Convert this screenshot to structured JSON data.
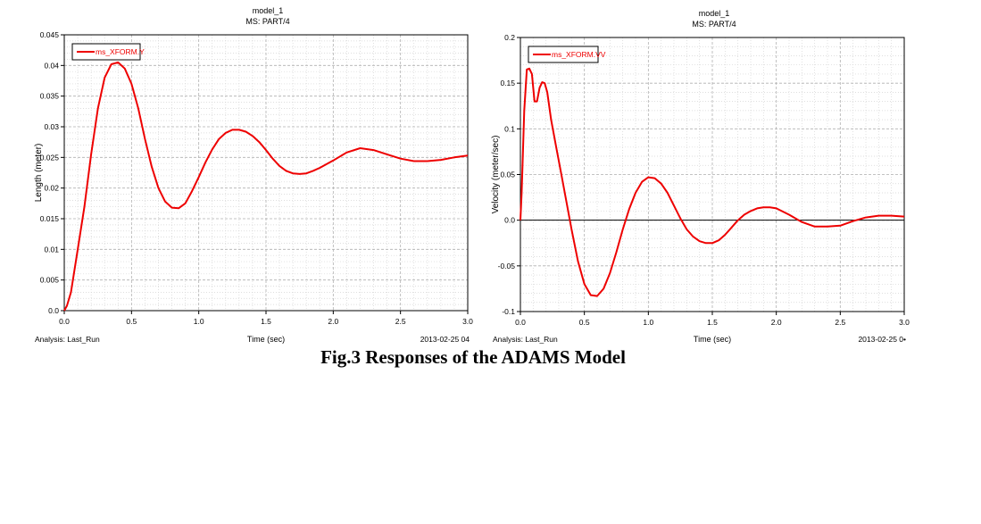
{
  "caption": "Fig.3 Responses of the ADAMS Model",
  "colors": {
    "series": "#ee0000",
    "grid": "#b0b0b0",
    "axis": "#000000"
  },
  "chart_data": [
    {
      "type": "line",
      "title": "model_1",
      "subtitle": "MS: PART/4",
      "xlabel": "Time (sec)",
      "ylabel": "Length (meter)",
      "xlim": [
        0,
        3.0
      ],
      "ylim": [
        0,
        0.045
      ],
      "xticks": [
        "0.0",
        "0.5",
        "1.0",
        "1.5",
        "2.0",
        "2.5",
        "3.0"
      ],
      "xtick_values": [
        0,
        0.5,
        1.0,
        1.5,
        2.0,
        2.5,
        3.0
      ],
      "yticks": [
        "0.0",
        "0.005",
        "0.01",
        "0.015",
        "0.02",
        "0.025",
        "0.03",
        "0.035",
        "0.04",
        "0.045"
      ],
      "ytick_values": [
        0,
        0.005,
        0.01,
        0.015,
        0.02,
        0.025,
        0.03,
        0.035,
        0.04,
        0.045
      ],
      "grid": true,
      "legend": "top-left",
      "footer_left": "Analysis:  Last_Run",
      "footer_right": "2013-02-25 04",
      "series": [
        {
          "name": "ms_XFORM.Y",
          "x": [
            0,
            0.02,
            0.05,
            0.1,
            0.15,
            0.2,
            0.25,
            0.3,
            0.35,
            0.4,
            0.45,
            0.5,
            0.55,
            0.6,
            0.65,
            0.7,
            0.75,
            0.8,
            0.85,
            0.9,
            0.95,
            1.0,
            1.05,
            1.1,
            1.15,
            1.2,
            1.25,
            1.3,
            1.35,
            1.4,
            1.45,
            1.5,
            1.55,
            1.6,
            1.65,
            1.7,
            1.75,
            1.8,
            1.85,
            1.9,
            2.0,
            2.1,
            2.2,
            2.3,
            2.4,
            2.5,
            2.6,
            2.7,
            2.8,
            2.9,
            3.0
          ],
          "y": [
            0,
            0.0008,
            0.003,
            0.01,
            0.017,
            0.0255,
            0.033,
            0.038,
            0.0402,
            0.0405,
            0.0395,
            0.037,
            0.033,
            0.028,
            0.0235,
            0.02,
            0.0178,
            0.0168,
            0.0167,
            0.0175,
            0.0195,
            0.0218,
            0.0242,
            0.0263,
            0.028,
            0.029,
            0.0295,
            0.0295,
            0.0292,
            0.0285,
            0.0275,
            0.0262,
            0.0248,
            0.0236,
            0.0228,
            0.0224,
            0.0223,
            0.0224,
            0.0228,
            0.0233,
            0.0245,
            0.0258,
            0.0265,
            0.0262,
            0.0255,
            0.0248,
            0.0244,
            0.0244,
            0.0246,
            0.025,
            0.0253
          ]
        }
      ]
    },
    {
      "type": "line",
      "title": "model_1",
      "subtitle": "MS: PART/4",
      "xlabel": "Time (sec)",
      "ylabel": "Velocity (meter/sec)",
      "xlim": [
        0,
        3.0
      ],
      "ylim": [
        -0.1,
        0.2
      ],
      "xticks": [
        "0.0",
        "0.5",
        "1.0",
        "1.5",
        "2.0",
        "2.5",
        "3.0"
      ],
      "xtick_values": [
        0,
        0.5,
        1.0,
        1.5,
        2.0,
        2.5,
        3.0
      ],
      "yticks": [
        "-0.1",
        "-0.05",
        "0.0",
        "0.05",
        "0.1",
        "0.15",
        "0.2"
      ],
      "ytick_values": [
        -0.1,
        -0.05,
        0,
        0.05,
        0.1,
        0.15,
        0.2
      ],
      "grid": true,
      "legend": "top-left",
      "zero_line": true,
      "footer_left": "Analysis:  Last_Run",
      "footer_right": "2013-02-25 0•",
      "series": [
        {
          "name": "ms_XFORM.VV",
          "x": [
            0,
            0.01,
            0.03,
            0.05,
            0.07,
            0.09,
            0.11,
            0.13,
            0.15,
            0.17,
            0.19,
            0.21,
            0.24,
            0.28,
            0.32,
            0.36,
            0.4,
            0.45,
            0.5,
            0.55,
            0.6,
            0.65,
            0.7,
            0.75,
            0.8,
            0.85,
            0.9,
            0.95,
            1.0,
            1.05,
            1.1,
            1.15,
            1.2,
            1.25,
            1.3,
            1.35,
            1.4,
            1.45,
            1.5,
            1.55,
            1.6,
            1.65,
            1.7,
            1.75,
            1.8,
            1.85,
            1.9,
            1.95,
            2.0,
            2.1,
            2.2,
            2.3,
            2.4,
            2.5,
            2.6,
            2.7,
            2.8,
            2.9,
            3.0
          ],
          "y": [
            0,
            0.03,
            0.12,
            0.165,
            0.166,
            0.16,
            0.13,
            0.13,
            0.145,
            0.151,
            0.15,
            0.14,
            0.11,
            0.08,
            0.05,
            0.02,
            -0.01,
            -0.045,
            -0.07,
            -0.082,
            -0.083,
            -0.075,
            -0.058,
            -0.035,
            -0.01,
            0.012,
            0.03,
            0.042,
            0.047,
            0.046,
            0.04,
            0.03,
            0.016,
            0.002,
            -0.01,
            -0.018,
            -0.023,
            -0.025,
            -0.025,
            -0.022,
            -0.016,
            -0.008,
            0,
            0.006,
            0.01,
            0.013,
            0.014,
            0.014,
            0.013,
            0.006,
            -0.002,
            -0.007,
            -0.007,
            -0.006,
            -0.001,
            0.003,
            0.005,
            0.005,
            0.004
          ]
        }
      ]
    }
  ]
}
